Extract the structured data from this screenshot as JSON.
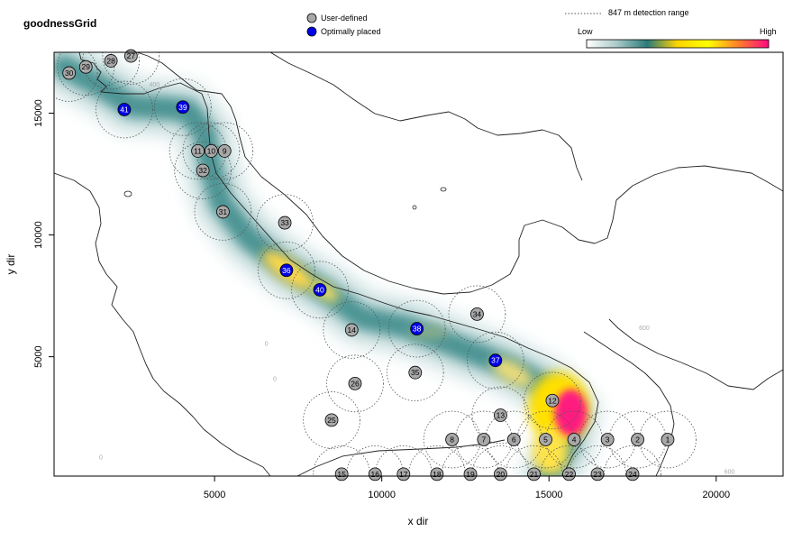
{
  "chart_data": {
    "type": "scatter",
    "title": "goodnessGrid",
    "xlabel": "x dir",
    "ylabel": "y dir",
    "xlim": [
      200,
      22000
    ],
    "ylim": [
      100,
      17500
    ],
    "xticks": [
      5000,
      10000,
      15000,
      20000
    ],
    "yticks": [
      5000,
      10000,
      15000
    ],
    "legend": {
      "placement": "top-center",
      "entries": [
        {
          "label": "User-defined",
          "color": "#a8a8a8"
        },
        {
          "label": "Optimally placed",
          "color": "#0000e6"
        }
      ]
    },
    "range_legend": {
      "label": "847 m detection range",
      "placement": "top-right"
    },
    "colorbar": {
      "low_label": "Low",
      "high_label": "High",
      "colors": [
        "#ffffff",
        "#a9c9c9",
        "#2c7a7a",
        "#ffd400",
        "#ffff00",
        "#ff7f2a",
        "#ff0b80"
      ]
    },
    "detection_range_m": 847,
    "contour_labels": [
      {
        "text": "400",
        "x": 3200,
        "y": 16100
      },
      {
        "text": "600",
        "x": 17850,
        "y": 6100
      },
      {
        "text": "0",
        "x": 1600,
        "y": 780
      },
      {
        "text": "0",
        "x": 6550,
        "y": 5450
      },
      {
        "text": "0",
        "x": 6800,
        "y": 4000
      },
      {
        "text": "600",
        "x": 20400,
        "y": 200
      }
    ],
    "series": [
      {
        "name": "User-defined",
        "color": "#a8a8a8",
        "points": [
          {
            "id": "1",
            "x": 18550,
            "y": 1600
          },
          {
            "id": "2",
            "x": 17650,
            "y": 1600
          },
          {
            "id": "3",
            "x": 16750,
            "y": 1600
          },
          {
            "id": "4",
            "x": 15750,
            "y": 1600
          },
          {
            "id": "5",
            "x": 14900,
            "y": 1600
          },
          {
            "id": "6",
            "x": 13950,
            "y": 1600
          },
          {
            "id": "7",
            "x": 13050,
            "y": 1600
          },
          {
            "id": "8",
            "x": 12100,
            "y": 1600
          },
          {
            "id": "9",
            "x": 5300,
            "y": 13450
          },
          {
            "id": "10",
            "x": 4900,
            "y": 13450
          },
          {
            "id": "11",
            "x": 4500,
            "y": 13450
          },
          {
            "id": "12",
            "x": 15100,
            "y": 3200
          },
          {
            "id": "13",
            "x": 13550,
            "y": 2600
          },
          {
            "id": "14",
            "x": 9100,
            "y": 6100
          },
          {
            "id": "15",
            "x": 8800,
            "y": 180
          },
          {
            "id": "16",
            "x": 9800,
            "y": 180
          },
          {
            "id": "17",
            "x": 10650,
            "y": 180
          },
          {
            "id": "18",
            "x": 11650,
            "y": 180
          },
          {
            "id": "19",
            "x": 12650,
            "y": 180
          },
          {
            "id": "20",
            "x": 13550,
            "y": 180
          },
          {
            "id": "21",
            "x": 14550,
            "y": 180
          },
          {
            "id": "22",
            "x": 15600,
            "y": 180
          },
          {
            "id": "23",
            "x": 16450,
            "y": 180
          },
          {
            "id": "24",
            "x": 17500,
            "y": 180
          },
          {
            "id": "25",
            "x": 8500,
            "y": 2400
          },
          {
            "id": "26",
            "x": 9200,
            "y": 3900
          },
          {
            "id": "27",
            "x": 2500,
            "y": 17350
          },
          {
            "id": "28",
            "x": 1900,
            "y": 17150
          },
          {
            "id": "29",
            "x": 1150,
            "y": 16900
          },
          {
            "id": "30",
            "x": 650,
            "y": 16650
          },
          {
            "id": "31",
            "x": 5250,
            "y": 10950
          },
          {
            "id": "32",
            "x": 4650,
            "y": 12650
          },
          {
            "id": "33",
            "x": 7100,
            "y": 10500
          },
          {
            "id": "34",
            "x": 12850,
            "y": 6750
          },
          {
            "id": "35",
            "x": 11000,
            "y": 4350
          }
        ]
      },
      {
        "name": "Optimally placed",
        "color": "#0000e6",
        "points": [
          {
            "id": "36",
            "x": 7150,
            "y": 8550
          },
          {
            "id": "37",
            "x": 13400,
            "y": 4850
          },
          {
            "id": "38",
            "x": 11050,
            "y": 6150
          },
          {
            "id": "39",
            "x": 4050,
            "y": 15250
          },
          {
            "id": "40",
            "x": 8150,
            "y": 7750
          },
          {
            "id": "41",
            "x": 2300,
            "y": 15150
          }
        ]
      }
    ]
  }
}
